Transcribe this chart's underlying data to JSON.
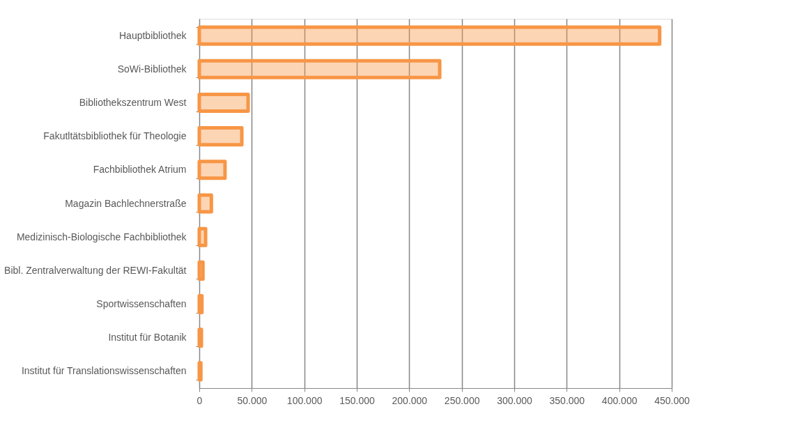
{
  "chart_data": {
    "type": "bar",
    "orientation": "horizontal",
    "categories": [
      "Hauptbibliothek",
      "SoWi-Bibliothek",
      "Bibliothekszentrum West",
      "Fakutltätsbibliothek für Theologie",
      "Fachbibliothek Atrium",
      "Magazin Bachlechnerstraße",
      "Medizinisch-Biologische Fachbibliothek",
      "Bibl. Zentralverwaltung der REWI-Fakultät",
      "Sportwissenschaften",
      "Institut für Botanik",
      "Institut für  Translationswissenschaften"
    ],
    "series": [
      {
        "color": "#f79646",
        "values": [
          438500,
          229000,
          46500,
          40500,
          24500,
          11500,
          6000,
          3500,
          2500,
          2000,
          1500
        ]
      }
    ],
    "xlim": [
      0,
      450000
    ],
    "xticks": [
      0,
      {
        "value": 50000,
        "label": "50.000"
      },
      {
        "value": 100000,
        "label": "100.000"
      },
      {
        "value": 150000,
        "label": "150.000"
      },
      {
        "value": 200000,
        "label": "200.000"
      },
      {
        "value": 250000,
        "label": "250.000"
      },
      {
        "value": 300000,
        "label": "300.000"
      },
      {
        "value": 350000,
        "label": "350.000"
      },
      {
        "value": 400000,
        "label": "400.000"
      },
      {
        "value": 450000,
        "label": "450.000"
      }
    ],
    "grid": "x"
  }
}
